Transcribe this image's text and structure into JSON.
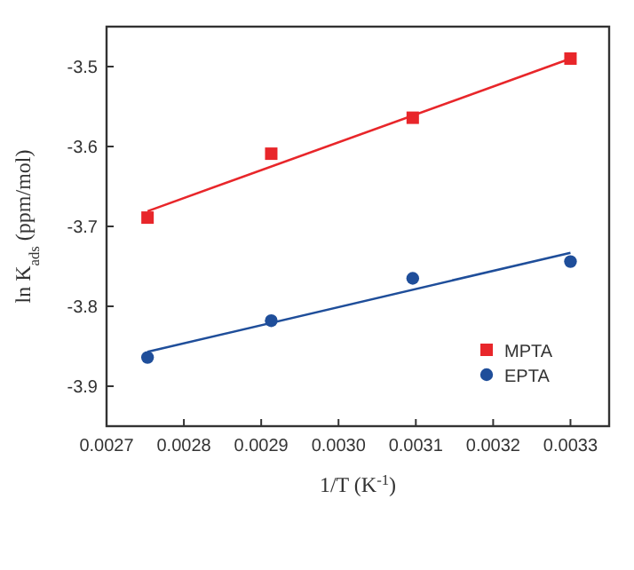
{
  "chart_data": {
    "type": "scatter",
    "xlabel": "1/T (K$^{-1}$)",
    "ylabel": "ln K$_{ads}$ (ppm/mol)",
    "xlim": [
      0.0027,
      0.00335
    ],
    "xticks": [
      0.0027,
      0.0028,
      0.0029,
      {
        "value": 0.003,
        "label": "0.0030"
      },
      0.0031,
      0.0032,
      0.0033
    ],
    "ylim": [
      -3.95,
      -3.45
    ],
    "yticks": [
      -3.9,
      -3.8,
      -3.7,
      -3.6,
      -3.5
    ],
    "grid": false,
    "legend": "bottom right",
    "series": [
      {
        "name": "MPTA",
        "color": "#e8262a",
        "marker": "square",
        "x": [
          0.002753,
          0.002913,
          0.003096,
          0.0033
        ],
        "values": [
          -3.689,
          -3.609,
          -3.564,
          -3.49
        ]
      },
      {
        "name": "EPTA",
        "color": "#1f4e9a",
        "marker": "circle",
        "x": [
          0.002753,
          0.002913,
          0.003096,
          0.0033
        ],
        "values": [
          -3.864,
          -3.818,
          -3.765,
          -3.744
        ]
      },
      {
        "type": "line",
        "color": "#e8262a",
        "marker": "none",
        "x": [
          0.002753,
          0.0033
        ],
        "values": [
          -3.681,
          -3.49
        ]
      },
      {
        "type": "line",
        "color": "#1f4e9a",
        "marker": "none",
        "x": [
          0.002753,
          0.0033
        ],
        "values": [
          -3.857,
          -3.733
        ]
      }
    ]
  }
}
